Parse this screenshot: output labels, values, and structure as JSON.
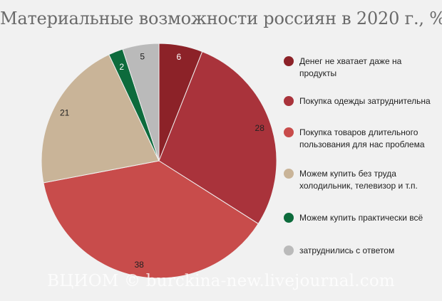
{
  "chart_data": {
    "type": "pie",
    "title": "Материальные возможности россиян в 2020 г., %",
    "categories": [
      "Денег не хватает даже на продукты",
      "Покупка одежды затруднительна",
      "Покупка товаров длительного пользования для нас проблема",
      "Можем купить без труда холодильник, телевизор и т.п.",
      "Можем купить практически всё",
      "затруднились с ответом"
    ],
    "values": [
      6,
      28,
      38,
      21,
      2,
      5
    ],
    "value_labels": [
      "6",
      "28",
      "38",
      "21",
      "2",
      "5"
    ],
    "colors": [
      "#8c2228",
      "#a9333b",
      "#c84c4b",
      "#c9b498",
      "#0d6b3c",
      "#bababa"
    ],
    "label_colors": [
      "#ffffff",
      "#222222",
      "#222222",
      "#222222",
      "#ffffff",
      "#222222"
    ],
    "legend_placement": "right"
  },
  "watermark": "ВЦИОМ © burckina-new.livejournal.com"
}
